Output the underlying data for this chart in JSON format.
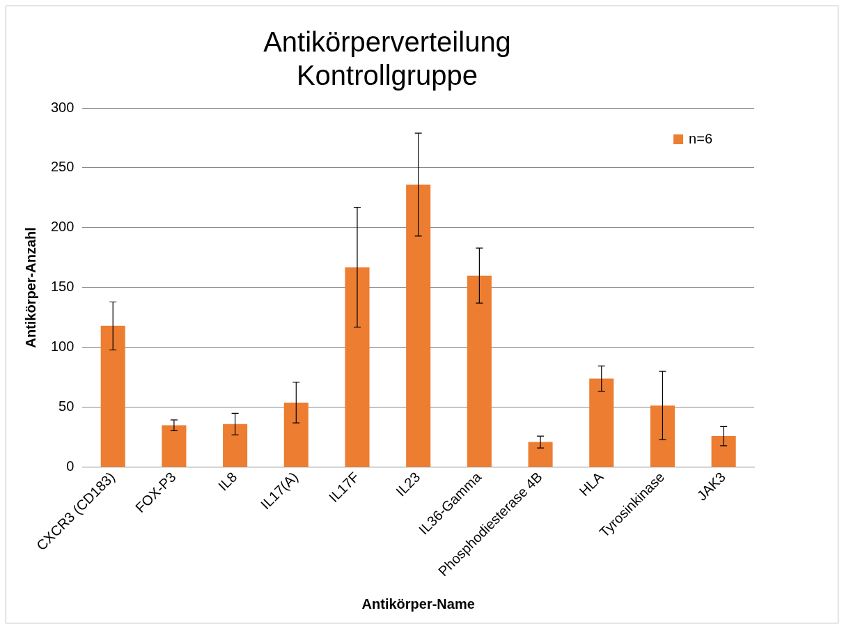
{
  "chart_data": {
    "type": "bar",
    "title": "Antikörperverteilung Kontrollgruppe",
    "xlabel": "Antikörper-Name",
    "ylabel": "Antikörper-Anzahl",
    "categories": [
      "CXCR3 (CD183)",
      "FOX-P3",
      "IL8",
      "IL17(A)",
      "IL17F",
      "IL23",
      "IL36-Gamma",
      "Phosphodiesterase 4B",
      "HLA",
      "Tyrosinkinase",
      "JAK3"
    ],
    "series": [
      {
        "name": "n=6",
        "color": "#ed7d31",
        "values": [
          118,
          35,
          36,
          54,
          167,
          236,
          160,
          21,
          74,
          51.5,
          26
        ],
        "errors": [
          20,
          4.5,
          9,
          17,
          50,
          43,
          23,
          5,
          10.5,
          28.5,
          8
        ]
      }
    ],
    "ylim": [
      0,
      300
    ],
    "yticks": [
      0,
      50,
      100,
      150,
      200,
      250,
      300
    ],
    "grid": "y",
    "legend": "top right"
  }
}
